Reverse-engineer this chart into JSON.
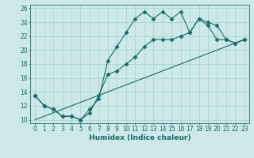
{
  "xlabel": "Humidex (Indice chaleur)",
  "bg_color": "#cce8e8",
  "line_color": "#1a6b6b",
  "grid_color": "#aacece",
  "xlim": [
    -0.5,
    23.5
  ],
  "ylim": [
    9.5,
    26.5
  ],
  "xticks": [
    0,
    1,
    2,
    3,
    4,
    5,
    6,
    7,
    8,
    9,
    10,
    11,
    12,
    13,
    14,
    15,
    16,
    17,
    18,
    19,
    20,
    21,
    22,
    23
  ],
  "yticks": [
    10,
    12,
    14,
    16,
    18,
    20,
    22,
    24,
    26
  ],
  "line1_x": [
    0,
    1,
    2,
    3,
    4,
    5,
    6,
    7,
    8,
    9,
    10,
    11,
    12,
    13,
    14,
    15,
    16,
    17,
    18,
    19,
    20,
    21,
    22,
    23
  ],
  "line1_y": [
    13.5,
    12.0,
    11.5,
    10.5,
    10.5,
    10.0,
    11.5,
    13.0,
    18.5,
    20.5,
    22.5,
    24.5,
    25.5,
    24.5,
    25.5,
    24.5,
    25.5,
    22.5,
    24.5,
    24.0,
    23.5,
    21.5,
    21.0,
    21.5
  ],
  "line2_x": [
    0,
    1,
    2,
    3,
    4,
    5,
    6,
    7,
    8,
    9,
    10,
    11,
    12,
    13,
    14,
    15,
    16,
    17,
    18,
    19,
    20,
    21,
    22,
    23
  ],
  "line2_y": [
    13.5,
    12.0,
    11.5,
    10.5,
    10.5,
    10.0,
    11.0,
    13.5,
    16.5,
    17.0,
    18.0,
    19.0,
    20.5,
    21.5,
    21.5,
    21.5,
    22.0,
    22.5,
    24.5,
    23.5,
    21.5,
    21.5,
    21.0,
    21.5
  ],
  "line3_x": [
    0,
    23
  ],
  "line3_y": [
    10.0,
    21.5
  ],
  "tick_fontsize": 5.5,
  "xlabel_fontsize": 6.5
}
